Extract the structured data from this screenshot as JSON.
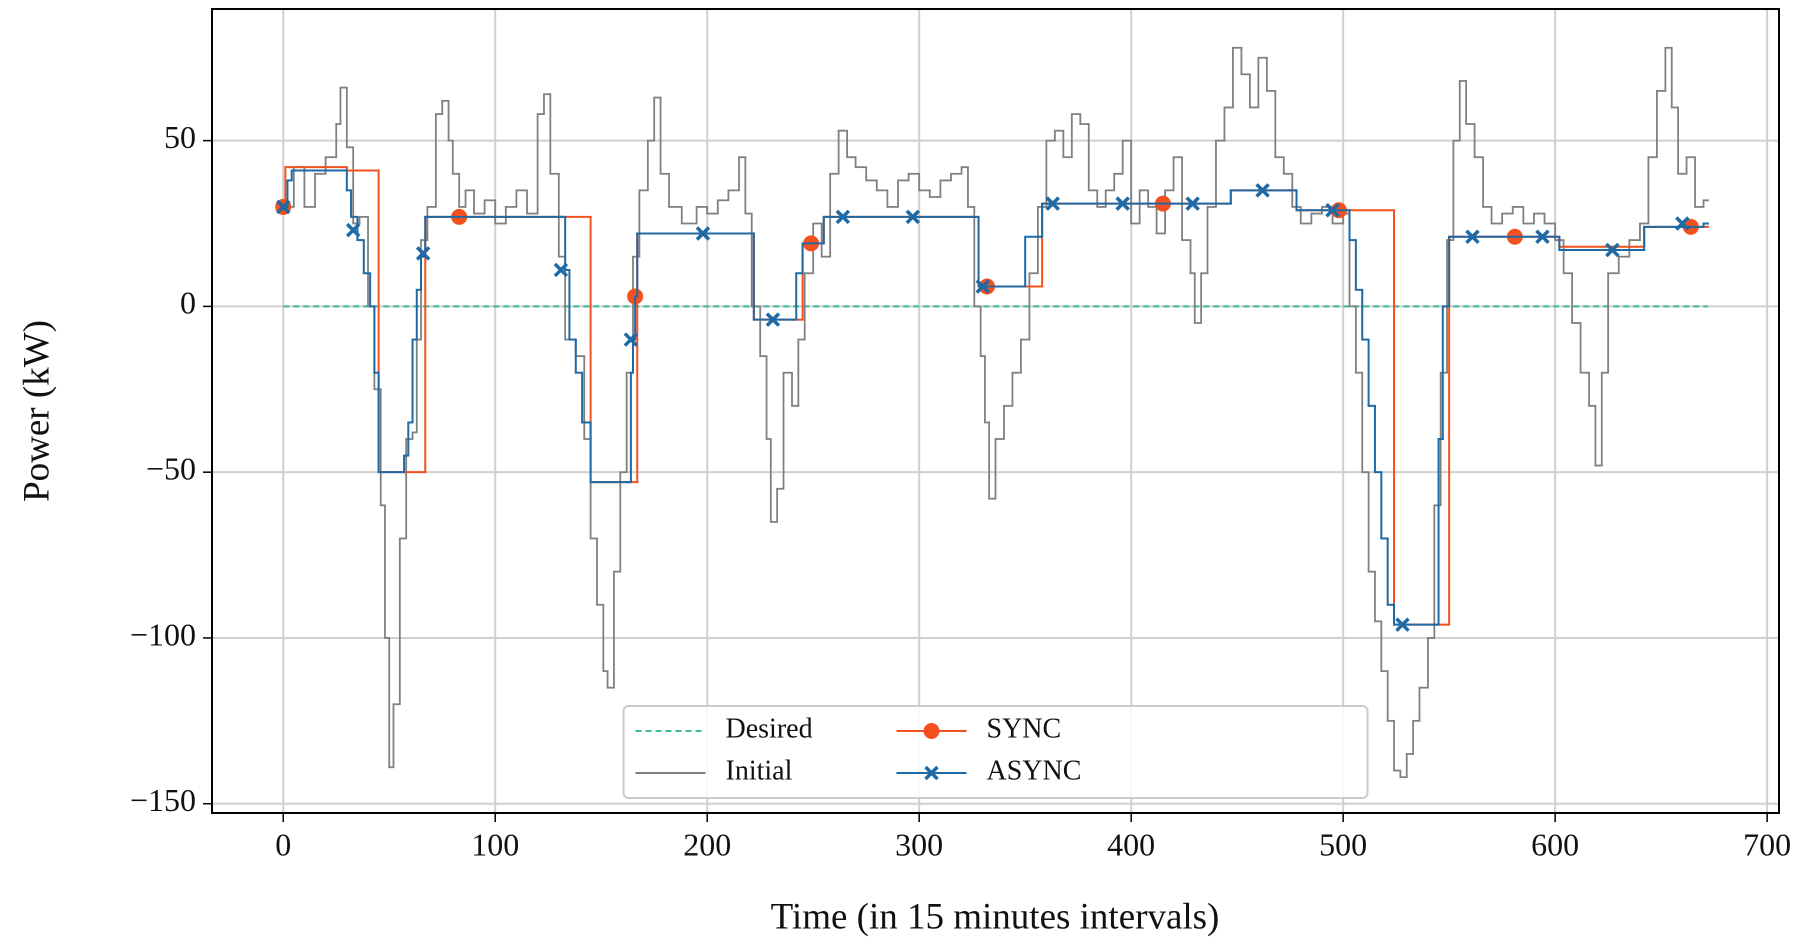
{
  "chart_data": {
    "type": "line",
    "x_label": "Time (in 15 minutes intervals)",
    "y_label": "Power (kW)",
    "xlim": [
      -33.6,
      705.6
    ],
    "ylim": [
      -152.8,
      89.7
    ],
    "xticks": [
      0,
      100,
      200,
      300,
      400,
      500,
      600,
      700
    ],
    "yticks": [
      {
        "value": -150,
        "label": "−150"
      },
      {
        "value": -100,
        "label": "−100"
      },
      {
        "value": -50,
        "label": "−50"
      },
      0,
      50
    ],
    "grid": true,
    "legend": "lower center",
    "legend_ncol": 3,
    "series": [
      {
        "name": "Desired",
        "color": "#3cb89a",
        "linestyle": "dashed",
        "drawstyle": "default",
        "x": [
          0,
          672
        ],
        "values": [
          0,
          0
        ]
      },
      {
        "name": "Initial",
        "color": "#808080",
        "linestyle": "solid",
        "drawstyle": "steps-post",
        "x": [
          0,
          5,
          10,
          15,
          20,
          25,
          27,
          30,
          33,
          36,
          40,
          43,
          46,
          48,
          50,
          52,
          55,
          58,
          61,
          63,
          65,
          68,
          72,
          75,
          78,
          80,
          83,
          86,
          90,
          95,
          100,
          105,
          110,
          115,
          120,
          123,
          126,
          130,
          133,
          138,
          142,
          145,
          148,
          151,
          153,
          156,
          159,
          162,
          165,
          168,
          172,
          175,
          178,
          182,
          188,
          195,
          200,
          205,
          210,
          215,
          218,
          221,
          225,
          228,
          230,
          233,
          236,
          240,
          243,
          246,
          250,
          254,
          258,
          262,
          266,
          270,
          275,
          280,
          285,
          290,
          295,
          300,
          305,
          310,
          315,
          320,
          323,
          326,
          329,
          331,
          333,
          336,
          340,
          344,
          348,
          352,
          356,
          360,
          364,
          368,
          372,
          376,
          380,
          384,
          388,
          392,
          396,
          400,
          404,
          408,
          412,
          416,
          420,
          424,
          428,
          430,
          433,
          436,
          440,
          444,
          448,
          452,
          456,
          460,
          464,
          468,
          472,
          476,
          480,
          485,
          490,
          495,
          500,
          503,
          506,
          509,
          512,
          515,
          518,
          521,
          524,
          527,
          530,
          533,
          536,
          540,
          543,
          546,
          549,
          552,
          555,
          558,
          562,
          566,
          570,
          575,
          580,
          585,
          590,
          595,
          600,
          604,
          608,
          612,
          616,
          619,
          622,
          625,
          630,
          635,
          640,
          644,
          648,
          652,
          655,
          658,
          662,
          666,
          670,
          672
        ],
        "values": [
          30,
          42,
          30,
          40,
          45,
          55,
          66,
          48,
          25,
          27,
          0,
          -25,
          -60,
          -100,
          -139,
          -120,
          -70,
          -40,
          -38,
          -10,
          20,
          30,
          58,
          62,
          50,
          40,
          30,
          35,
          28,
          32,
          25,
          30,
          35,
          28,
          58,
          64,
          40,
          15,
          -10,
          -15,
          -40,
          -70,
          -90,
          -110,
          -115,
          -80,
          -50,
          -20,
          15,
          35,
          50,
          63,
          40,
          30,
          25,
          30,
          28,
          32,
          35,
          45,
          28,
          0,
          -15,
          -40,
          -65,
          -55,
          -20,
          -30,
          -10,
          10,
          25,
          15,
          40,
          53,
          45,
          42,
          38,
          35,
          30,
          38,
          40,
          35,
          33,
          38,
          40,
          42,
          30,
          0,
          -15,
          -35,
          -58,
          -40,
          -30,
          -20,
          -10,
          10,
          30,
          50,
          53,
          45,
          58,
          55,
          35,
          30,
          35,
          40,
          50,
          25,
          35,
          30,
          22,
          35,
          45,
          20,
          10,
          -5,
          10,
          30,
          50,
          60,
          78,
          70,
          60,
          75,
          65,
          45,
          40,
          30,
          25,
          28,
          30,
          25,
          28,
          0,
          -20,
          -50,
          -80,
          -95,
          -110,
          -125,
          -140,
          -142,
          -135,
          -125,
          -115,
          -100,
          -60,
          -20,
          20,
          50,
          68,
          55,
          45,
          30,
          25,
          28,
          30,
          25,
          28,
          25,
          20,
          10,
          -5,
          -20,
          -30,
          -48,
          -20,
          10,
          15,
          20,
          25,
          45,
          65,
          78,
          60,
          40,
          45,
          30,
          32,
          32
        ]
      },
      {
        "name": "SYNC",
        "color": "#f4511e",
        "linestyle": "solid",
        "drawstyle": "steps-post",
        "marker": "o",
        "x": [
          0,
          1,
          30,
          45,
          57,
          67,
          131,
          145,
          163,
          167,
          220,
          222,
          240,
          245,
          255,
          325,
          328,
          347,
          358,
          445,
          447,
          475,
          478,
          500,
          524,
          543,
          550,
          600,
          602,
          640,
          642,
          672
        ],
        "values": [
          30,
          42,
          41,
          -50,
          -50,
          27,
          27,
          -53,
          -53,
          22,
          22,
          -4,
          -4,
          19,
          27,
          27,
          6,
          6,
          31,
          31,
          35,
          35,
          29,
          29,
          -96,
          -96,
          21,
          21,
          18,
          18,
          24,
          24
        ],
        "marker_x": [
          0,
          83,
          166,
          249,
          332,
          415,
          498,
          581,
          664
        ],
        "marker_values": [
          30,
          27,
          3,
          19,
          6,
          31,
          29,
          21,
          24
        ]
      },
      {
        "name": "ASYNC",
        "color": "#1f6aa5",
        "linestyle": "solid",
        "drawstyle": "steps-post",
        "marker": "x",
        "x": [
          0,
          2,
          4,
          28,
          30,
          32,
          35,
          38,
          41,
          43,
          45,
          57,
          59,
          61,
          63,
          65,
          67,
          131,
          133,
          135,
          138,
          141,
          145,
          162,
          164,
          165,
          166,
          167,
          220,
          222,
          240,
          242,
          245,
          255,
          325,
          328,
          347,
          350,
          358,
          445,
          447,
          475,
          478,
          500,
          503,
          506,
          509,
          512,
          515,
          518,
          521,
          524,
          543,
          545,
          547,
          550,
          600,
          602,
          640,
          642,
          670,
          672
        ],
        "values": [
          30,
          38,
          41,
          41,
          35,
          27,
          20,
          10,
          0,
          -20,
          -50,
          -45,
          -35,
          -10,
          5,
          15,
          27,
          27,
          11,
          -10,
          -20,
          -35,
          -53,
          -53,
          -20,
          -10,
          3,
          22,
          22,
          -4,
          -4,
          10,
          19,
          27,
          27,
          6,
          6,
          21,
          31,
          31,
          35,
          35,
          29,
          29,
          20,
          5,
          -10,
          -30,
          -50,
          -70,
          -90,
          -96,
          -96,
          -40,
          0,
          21,
          21,
          17,
          17,
          24,
          25,
          25
        ],
        "marker_x": [
          0,
          33,
          66,
          131,
          164,
          198,
          231,
          264,
          297,
          330,
          363,
          396,
          429,
          462,
          495,
          528,
          561,
          594,
          627,
          660
        ],
        "marker_values": [
          30,
          23,
          16,
          11,
          -10,
          22,
          -4,
          27,
          27,
          6,
          31,
          31,
          31,
          35,
          29,
          -96,
          21,
          21,
          17,
          25
        ]
      }
    ]
  }
}
